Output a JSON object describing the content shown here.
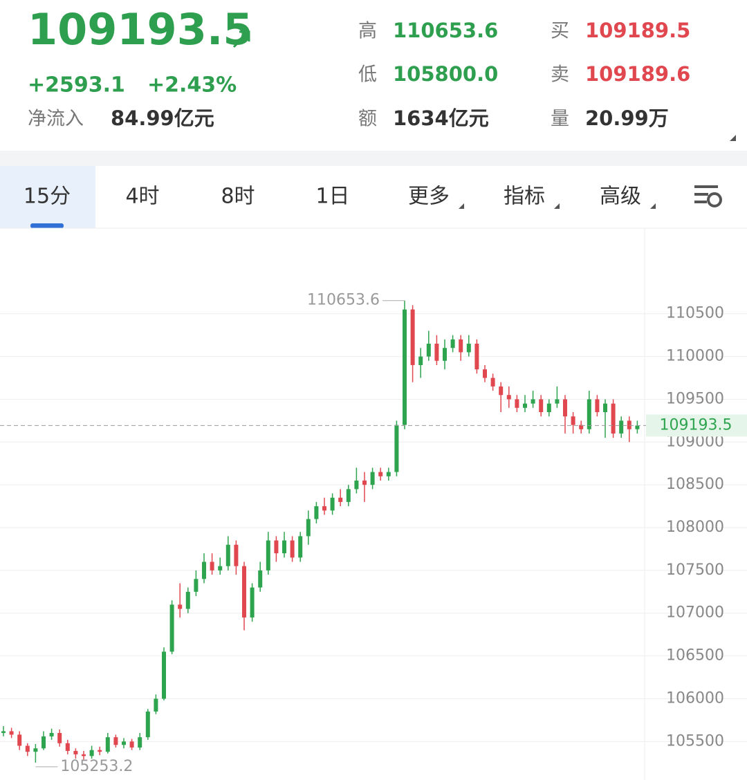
{
  "header": {
    "price": "109193.5",
    "change": "+2593.1",
    "change_pct": "+2.43%",
    "net_inflow_label": "净流入",
    "net_inflow": "84.99亿元",
    "stats": [
      {
        "label": "高",
        "value": "110653.6"
      },
      {
        "label": "买",
        "value": "109189.5"
      },
      {
        "label": "低",
        "value": "105800.0"
      },
      {
        "label": "卖",
        "value": "109189.6"
      },
      {
        "label": "额",
        "value": "1634亿元"
      },
      {
        "label": "量",
        "value": "20.99万"
      }
    ]
  },
  "tabs": [
    "15分",
    "4时",
    "8时",
    "1日",
    "更多",
    "指标",
    "高级"
  ],
  "chart_data": {
    "type": "candlestick",
    "up_color": "#2ea44f",
    "down_color": "#e0474f",
    "grid": true,
    "ylim": [
      105050,
      111500
    ],
    "yticks": [
      105500,
      106000,
      106500,
      107000,
      107500,
      108000,
      108500,
      109000,
      109500,
      110000,
      110500
    ],
    "open": [
      105600,
      105620,
      105580,
      105450,
      105380,
      105420,
      105560,
      105600,
      105480,
      105390,
      105350,
      105330,
      105400,
      105380,
      105550,
      105460,
      105500,
      105430,
      105550,
      105850,
      106000,
      106550,
      107100,
      107050,
      107250,
      107400,
      107600,
      107500,
      107550,
      107800,
      107550,
      106950,
      107300,
      107500,
      107850,
      107700,
      107850,
      107650,
      107900,
      108100,
      108250,
      108200,
      108350,
      108300,
      108450,
      108550,
      108500,
      108650,
      108600,
      108650,
      109200,
      110550,
      109900,
      110000,
      110150,
      109950,
      110100,
      110200,
      110050,
      110150,
      109850,
      109750,
      109650,
      109550,
      109500,
      109400,
      109450,
      109500,
      109350,
      109450,
      109500,
      109300,
      109200,
      109150,
      109500,
      109350,
      109450,
      109100,
      109250,
      109150
    ],
    "high": [
      105680,
      105660,
      105620,
      105480,
      105470,
      105620,
      105650,
      105640,
      105520,
      105420,
      105390,
      105450,
      105440,
      105600,
      105580,
      105540,
      105530,
      105600,
      105880,
      106050,
      106600,
      107150,
      107350,
      107300,
      107500,
      107700,
      107700,
      107650,
      107900,
      107850,
      107600,
      107350,
      107600,
      107950,
      107900,
      107950,
      107900,
      107950,
      108200,
      108300,
      108350,
      108400,
      108450,
      108500,
      108700,
      108650,
      108700,
      108700,
      108700,
      109250,
      110653.6,
      110600,
      110100,
      110300,
      110250,
      110200,
      110250,
      110250,
      110250,
      110200,
      109900,
      109800,
      109700,
      109650,
      109550,
      109550,
      109600,
      109550,
      109500,
      109650,
      109550,
      109350,
      109250,
      109600,
      109550,
      109500,
      109500,
      109300,
      109300,
      109250
    ],
    "low": [
      105560,
      105540,
      105400,
      105330,
      105253.2,
      105400,
      105520,
      105440,
      105350,
      105300,
      105290,
      105300,
      105340,
      105360,
      105430,
      105420,
      105400,
      105400,
      105520,
      105820,
      105980,
      106520,
      106950,
      107000,
      107200,
      107350,
      107450,
      107450,
      107500,
      107450,
      106800,
      106900,
      107250,
      107450,
      107600,
      107650,
      107600,
      107600,
      107800,
      108050,
      108150,
      108150,
      108250,
      108250,
      108400,
      108300,
      108450,
      108550,
      108550,
      108600,
      109150,
      109700,
      109750,
      109950,
      109900,
      109850,
      110050,
      109950,
      110000,
      109800,
      109700,
      109600,
      109350,
      109400,
      109350,
      109350,
      109400,
      109300,
      109300,
      109400,
      109100,
      109100,
      109100,
      109100,
      109300,
      109050,
      109050,
      109050,
      109000,
      109100
    ],
    "close": [
      105620,
      105580,
      105450,
      105380,
      105420,
      105560,
      105600,
      105480,
      105390,
      105350,
      105330,
      105400,
      105380,
      105550,
      105460,
      105500,
      105430,
      105550,
      105850,
      106000,
      106550,
      107100,
      107050,
      107250,
      107400,
      107600,
      107500,
      107550,
      107800,
      107550,
      106950,
      107300,
      107500,
      107850,
      107700,
      107850,
      107650,
      107900,
      108100,
      108250,
      108200,
      108350,
      108300,
      108450,
      108550,
      108500,
      108650,
      108600,
      108650,
      109200,
      110550,
      109900,
      110000,
      110150,
      109950,
      110100,
      110200,
      110050,
      110150,
      109850,
      109750,
      109650,
      109550,
      109500,
      109400,
      109450,
      109500,
      109350,
      109450,
      109500,
      109300,
      109200,
      109150,
      109500,
      109350,
      109450,
      109100,
      109250,
      109150,
      109193.5
    ]
  }
}
